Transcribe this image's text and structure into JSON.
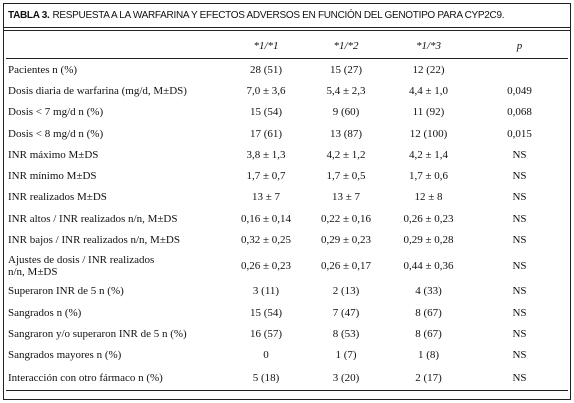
{
  "title": {
    "label": "TABLA 3.",
    "text": "RESPUESTA A LA WARFARINA Y EFECTOS ADVERSOS EN FUNCIÓN DEL GENOTIPO PARA CYP2C9."
  },
  "table": {
    "header": [
      "*1/*1",
      "*1/*2",
      "*1/*3",
      "p"
    ],
    "rows": [
      [
        "Pacientes n (%)",
        "28 (51)",
        "15 (27)",
        "12 (22)",
        null
      ],
      [
        "Dosis diaria de warfarina (mg/d, M±DS)",
        "7,0 ± 3,6",
        "5,4 ± 2,3",
        "4,4 ± 1,0",
        "0,049"
      ],
      [
        "Dosis < 7 mg/d n (%)",
        "15 (54)",
        "9 (60)",
        "11 (92)",
        "0,068"
      ],
      [
        "Dosis < 8 mg/d n (%)",
        "17 (61)",
        "13 (87)",
        "12 (100)",
        "0,015"
      ],
      [
        "INR máximo M±DS",
        "3,8 ± 1,3",
        "4,2 ± 1,2",
        "4,2 ± 1,4",
        "NS"
      ],
      [
        "INR mínimo M±DS",
        "1,7 ± 0,7",
        "1,7 ± 0,5",
        "1,7 ± 0,6",
        "NS"
      ],
      [
        "INR realizados M±DS",
        "13 ± 7",
        "13 ± 7",
        "12 ± 8",
        "NS"
      ],
      [
        "INR altos / INR realizados n/n, M±DS",
        "0,16 ± 0,14",
        "0,22 ± 0,16",
        "0,26 ± 0,23",
        "NS"
      ],
      [
        "INR bajos / INR realizados n/n, M±DS",
        "0,32 ± 0,25",
        "0,29 ± 0,23",
        "0,29 ± 0,28",
        "NS"
      ],
      [
        "Ajustes de dosis / INR realizados n/n, M±DS",
        "0,26 ± 0,23",
        "0,26 ± 0,17",
        "0,44 ± 0,36",
        "NS"
      ],
      [
        "Superaron INR de 5 n (%)",
        "3 (11)",
        "2 (13)",
        "4 (33)",
        "NS"
      ],
      [
        "Sangrados n (%)",
        "15 (54)",
        "7 (47)",
        "8 (67)",
        "NS"
      ],
      [
        "Sangraron y/o superaron INR de 5 n (%)",
        "16 (57)",
        "8 (53)",
        "8 (67)",
        "NS"
      ],
      [
        "Sangrados mayores n (%)",
        "0",
        "1 (7)",
        "1 (8)",
        "NS"
      ],
      [
        "Interacción con otro fármaco n (%)",
        "5 (18)",
        "3 (20)",
        "2 (17)",
        "NS"
      ]
    ]
  }
}
